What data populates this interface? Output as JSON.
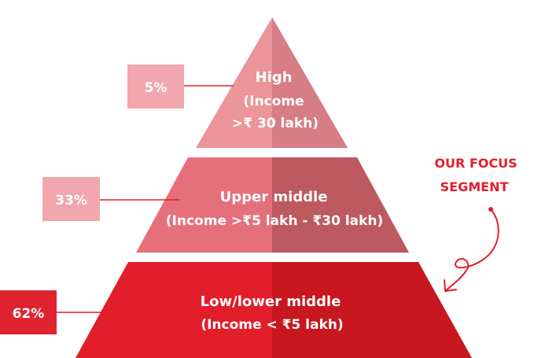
{
  "colors": {
    "high_light": "#eb949a",
    "high_dark": "#d67d85",
    "upper_light": "#e5707b",
    "upper_dark": "#bd5960",
    "lower_light": "#e21e2b",
    "lower_dark": "#c8171f",
    "box_high": "#f1a7ad",
    "box_upper": "#f1a7ad",
    "box_lower": "#e12330",
    "connector": "#e21e2b",
    "focus": "#e21e2b"
  },
  "tiers": {
    "high": {
      "title": "High",
      "line1": "(Income",
      "line2": ">₹ 30 lakh)",
      "percent": "5%"
    },
    "upper": {
      "title": "Upper middle",
      "line1": "(Income >₹5 lakh - ₹30 lakh)",
      "percent": "33%"
    },
    "lower": {
      "title": "Low/lower middle",
      "line1": "(Income < ₹5 lakh)",
      "percent": "62%"
    }
  },
  "focus": {
    "line1": "OUR FOCUS",
    "line2": "SEGMENT"
  }
}
